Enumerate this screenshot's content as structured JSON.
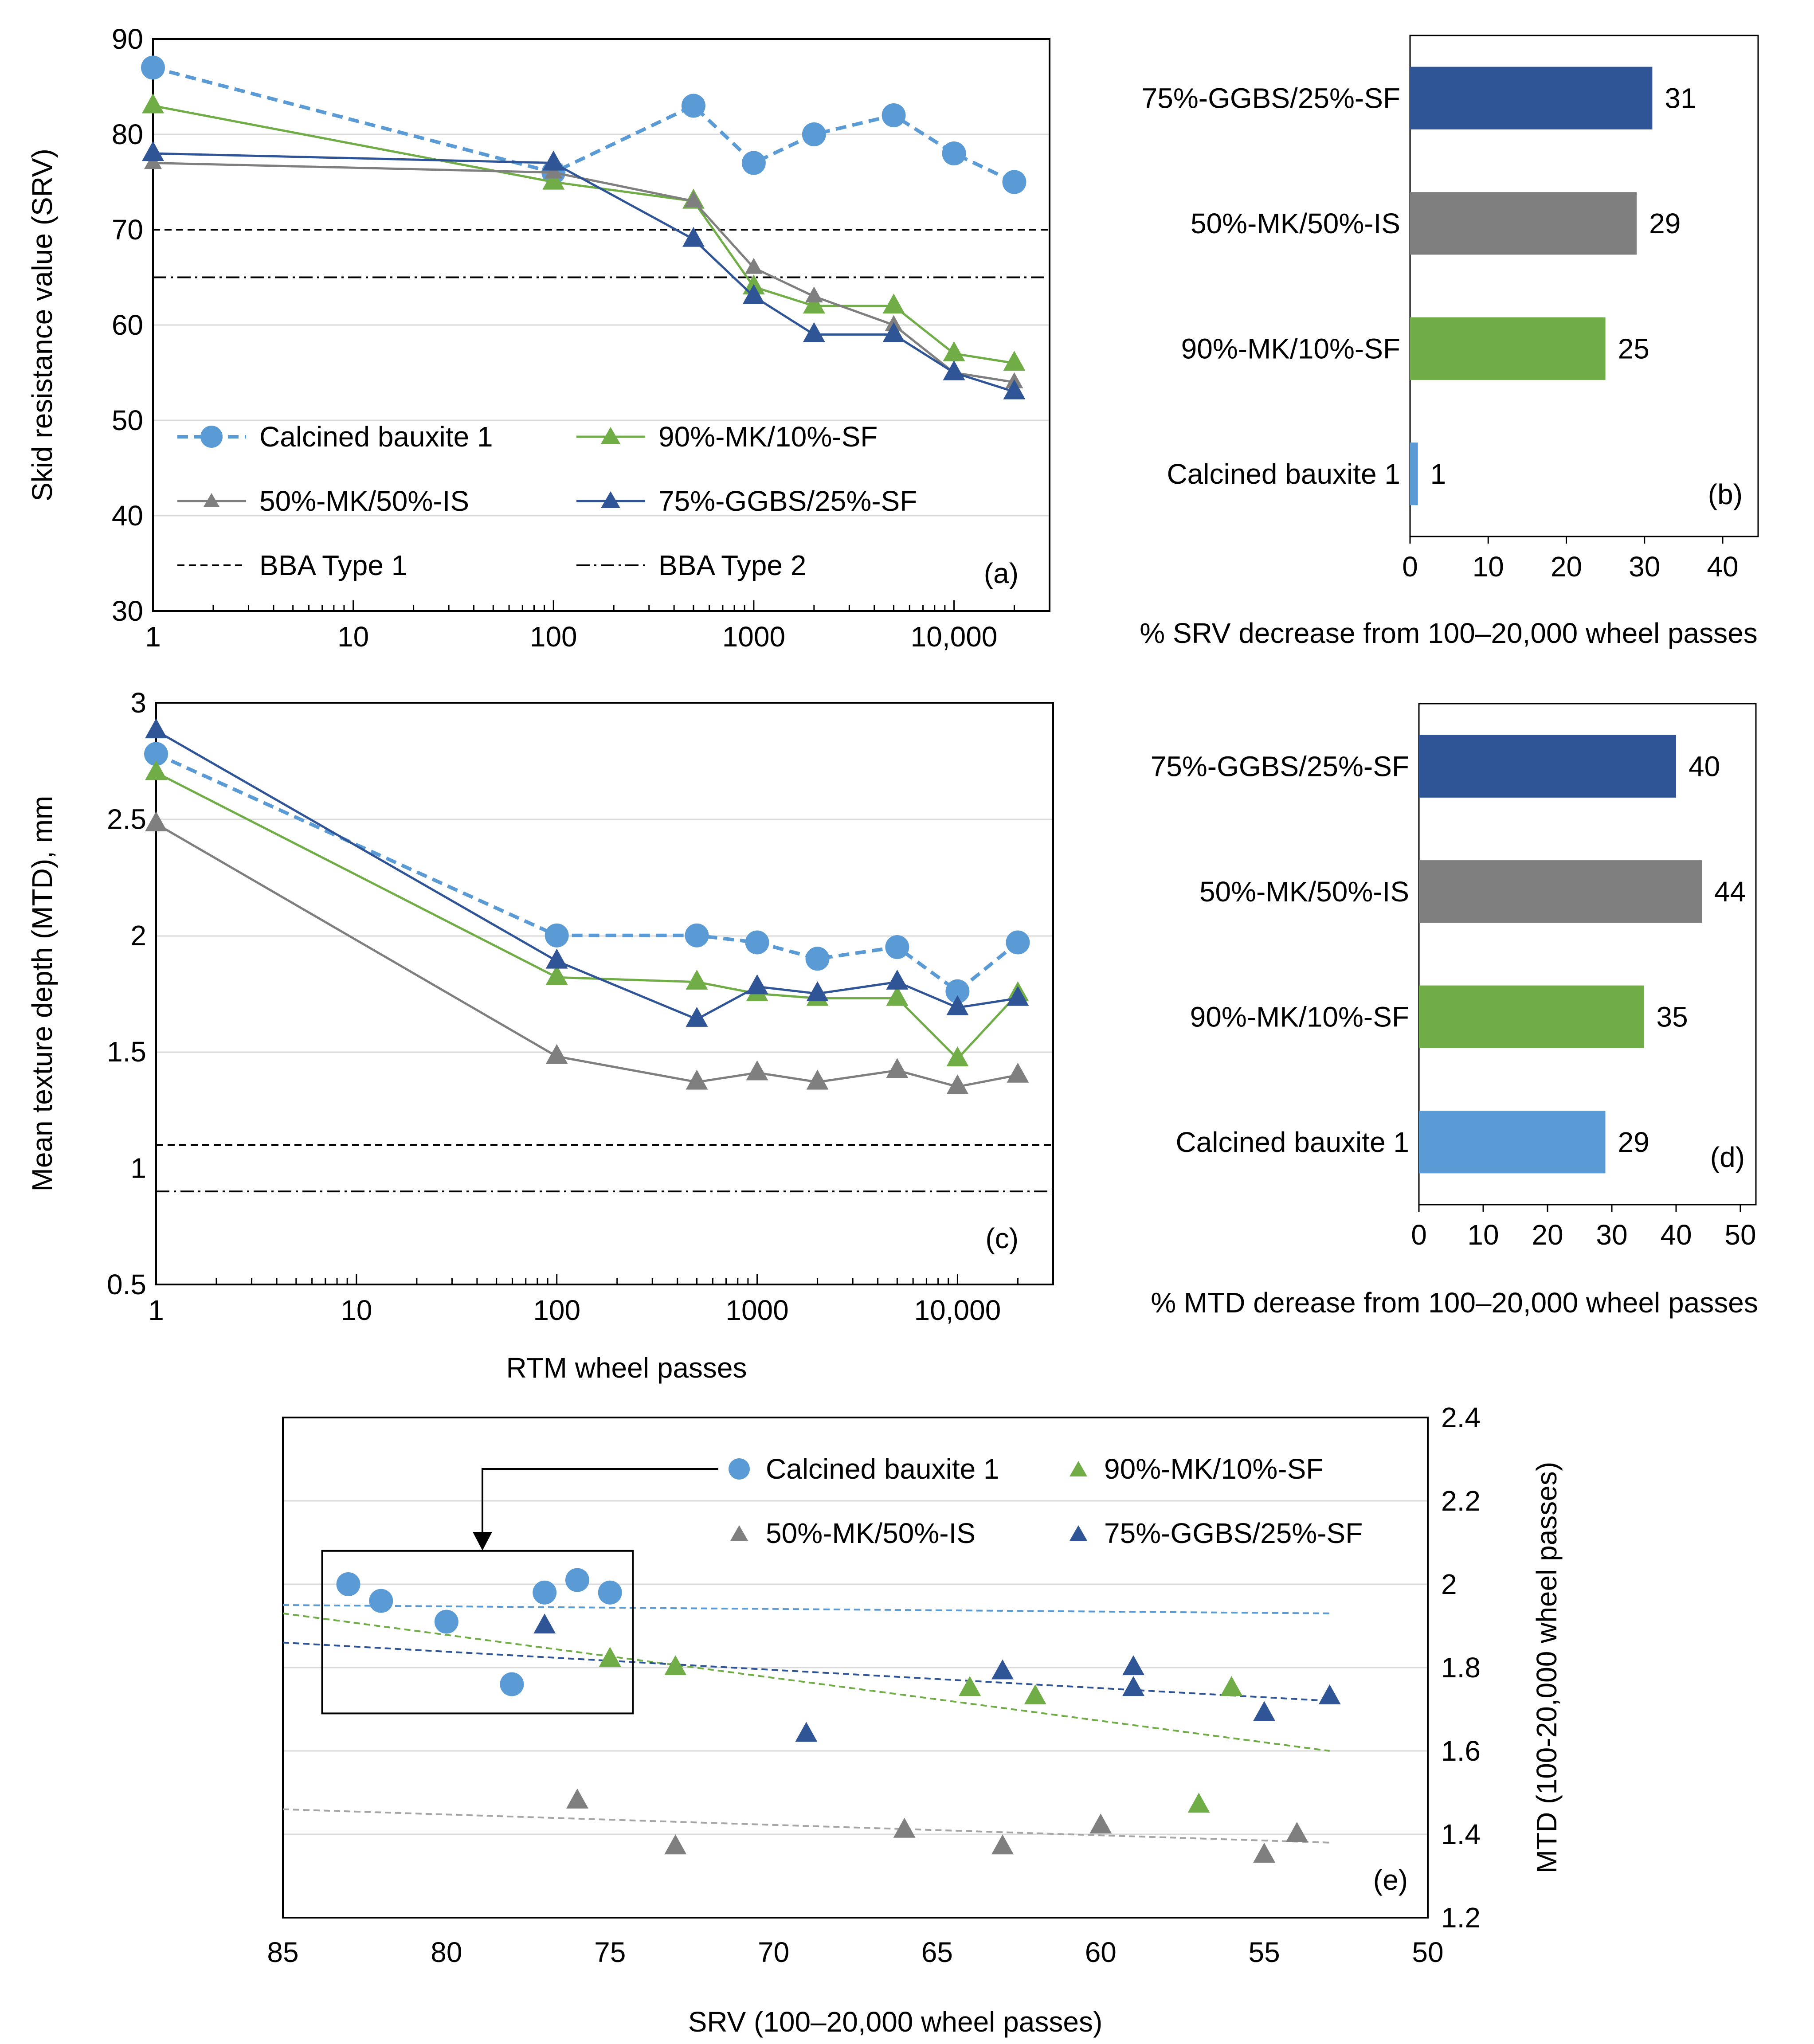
{
  "colors": {
    "calcined": "#5B9BD5",
    "mk_is": "#7F7F7F",
    "mk_sf": "#70AD47",
    "ggbs": "#2F5597",
    "axis": "#000000",
    "grid": "#D9D9D9",
    "trend_cal": "#5B9BD5",
    "trend_ggbs": "#2F5597",
    "trend_mksf": "#70AD47",
    "trend_mkis": "#A6A6A6"
  },
  "chart_data": [
    {
      "id": "a",
      "panel_label": "(a)",
      "type": "line",
      "ylabel": "Skid resistance value (SRV)",
      "xlabel": "",
      "xscale": "log",
      "xlim": [
        1,
        30000
      ],
      "ylim": [
        30,
        90
      ],
      "yticks": [
        "30",
        "40",
        "50",
        "60",
        "70",
        "80",
        "90"
      ],
      "xticks": [
        {
          "v": 1,
          "label": "1"
        },
        {
          "v": 10,
          "label": "10"
        },
        {
          "v": 100,
          "label": "100"
        },
        {
          "v": 1000,
          "label": "1000"
        },
        {
          "v": 10000,
          "label": "10,000"
        }
      ],
      "series": [
        {
          "name": "Calcined bauxite 1",
          "key": "calcined",
          "marker": "circle",
          "dash": "dashed",
          "x": [
            1,
            100,
            500,
            1000,
            2000,
            5000,
            10000,
            20000
          ],
          "values": [
            87,
            76,
            83,
            77,
            80,
            82,
            78,
            75
          ]
        },
        {
          "name": "90%-MK/10%-SF",
          "key": "mk_sf",
          "marker": "triangle",
          "dash": "solid",
          "x": [
            1,
            100,
            500,
            1000,
            2000,
            5000,
            10000,
            20000
          ],
          "values": [
            83,
            75,
            73,
            64,
            62,
            62,
            57,
            56
          ]
        },
        {
          "name": "50%-MK/50%-IS",
          "key": "mk_is",
          "marker": "triangle-small",
          "dash": "solid",
          "x": [
            1,
            100,
            500,
            1000,
            2000,
            5000,
            10000,
            20000
          ],
          "values": [
            77,
            76,
            73,
            66,
            63,
            60,
            55,
            54
          ]
        },
        {
          "name": "75%-GGBS/25%-SF",
          "key": "ggbs",
          "marker": "triangle",
          "dash": "solid",
          "x": [
            1,
            100,
            500,
            1000,
            2000,
            5000,
            10000,
            20000
          ],
          "values": [
            78,
            77,
            69,
            63,
            59,
            59,
            55,
            53
          ]
        }
      ],
      "reference_lines": [
        {
          "name": "BBA Type 1",
          "value": 70,
          "dash": "dashed"
        },
        {
          "name": "BBA Type 2",
          "value": 65,
          "dash": "dashdot"
        }
      ],
      "legend_position": "lower-left"
    },
    {
      "id": "b",
      "panel_label": "(b)",
      "type": "bar",
      "orientation": "horizontal",
      "categories": [
        "75%-GGBS/25%-SF",
        "50%-MK/50%-IS",
        "90%-MK/10%-SF",
        "Calcined bauxite 1"
      ],
      "keys": [
        "ggbs",
        "mk_is",
        "mk_sf",
        "calcined"
      ],
      "values": [
        31,
        29,
        25,
        1
      ],
      "value_labels": [
        "31",
        "29",
        "25",
        "1"
      ],
      "xlabel": "% SRV decrease from 100–20,000 wheel passes",
      "xlim": [
        0,
        40
      ],
      "xticks": [
        "0",
        "10",
        "20",
        "30",
        "40"
      ]
    },
    {
      "id": "c",
      "panel_label": "(c)",
      "type": "line",
      "ylabel": "Mean texture depth (MTD), mm",
      "xlabel": "RTM wheel passes",
      "xscale": "log",
      "xlim": [
        1,
        30000
      ],
      "ylim": [
        0.5,
        3
      ],
      "yticks": [
        "0.5",
        "1",
        "1.5",
        "2",
        "2.5",
        "3"
      ],
      "xticks": [
        {
          "v": 1,
          "label": "1"
        },
        {
          "v": 10,
          "label": "10"
        },
        {
          "v": 100,
          "label": "100"
        },
        {
          "v": 1000,
          "label": "1000"
        },
        {
          "v": 10000,
          "label": "10,000"
        }
      ],
      "series": [
        {
          "name": "Calcined bauxite 1",
          "key": "calcined",
          "marker": "circle",
          "dash": "dashed",
          "x": [
            1,
            100,
            500,
            1000,
            2000,
            5000,
            10000,
            20000
          ],
          "values": [
            2.78,
            2.0,
            2.0,
            1.97,
            1.9,
            1.95,
            1.76,
            1.97
          ]
        },
        {
          "name": "90%-MK/10%-SF",
          "key": "mk_sf",
          "marker": "triangle",
          "dash": "solid",
          "x": [
            1,
            100,
            500,
            1000,
            2000,
            5000,
            10000,
            20000
          ],
          "values": [
            2.7,
            1.82,
            1.8,
            1.75,
            1.73,
            1.73,
            1.47,
            1.75
          ]
        },
        {
          "name": "50%-MK/50%-IS",
          "key": "mk_is",
          "marker": "triangle",
          "dash": "solid",
          "x": [
            1,
            100,
            500,
            1000,
            2000,
            5000,
            10000,
            20000
          ],
          "values": [
            2.48,
            1.48,
            1.37,
            1.41,
            1.37,
            1.42,
            1.35,
            1.4
          ]
        },
        {
          "name": "75%-GGBS/25%-SF",
          "key": "ggbs",
          "marker": "triangle",
          "dash": "solid",
          "x": [
            1,
            100,
            500,
            1000,
            2000,
            5000,
            10000,
            20000
          ],
          "values": [
            2.88,
            1.89,
            1.64,
            1.78,
            1.75,
            1.8,
            1.69,
            1.73
          ]
        }
      ],
      "reference_lines": [
        {
          "name": "BBA Type 1",
          "value": 1.1,
          "dash": "dashed"
        },
        {
          "name": "BBA Type 2",
          "value": 0.9,
          "dash": "dashdot"
        }
      ]
    },
    {
      "id": "d",
      "panel_label": "(d)",
      "type": "bar",
      "orientation": "horizontal",
      "categories": [
        "75%-GGBS/25%-SF",
        "50%-MK/50%-IS",
        "90%-MK/10%-SF",
        "Calcined bauxite 1"
      ],
      "keys": [
        "ggbs",
        "mk_is",
        "mk_sf",
        "calcined"
      ],
      "values": [
        40,
        44,
        35,
        29
      ],
      "value_labels": [
        "40",
        "44",
        "35",
        "29"
      ],
      "xlabel": "% MTD derease from 100–20,000 wheel passes",
      "xlim": [
        0,
        50
      ],
      "xticks": [
        "0",
        "10",
        "20",
        "30",
        "40",
        "50"
      ]
    },
    {
      "id": "e",
      "panel_label": "(e)",
      "type": "scatter",
      "xlabel": "SRV (100–20,000 wheel passes)",
      "ylabel": "MTD (100-20,000 wheel passes)",
      "xlim": [
        85,
        50
      ],
      "ylim": [
        1.2,
        2.4
      ],
      "xticks": [
        "85",
        "80",
        "75",
        "70",
        "65",
        "60",
        "55",
        "50"
      ],
      "yticks": [
        "1.2",
        "1.4",
        "1.6",
        "1.8",
        "2",
        "2.2",
        "2.4"
      ],
      "series": [
        {
          "name": "Calcined bauxite 1",
          "key": "calcined",
          "marker": "circle",
          "x": [
            83,
            82,
            80,
            78,
            77,
            76,
            75
          ],
          "values": [
            2.0,
            1.96,
            1.91,
            1.76,
            1.98,
            2.01,
            1.98
          ],
          "trend": {
            "x": [
              85,
              53
            ],
            "values": [
              1.95,
              1.93
            ]
          }
        },
        {
          "name": "90%-MK/10%-SF",
          "key": "mk_sf",
          "marker": "triangle",
          "x": [
            75,
            73,
            64,
            62,
            57,
            56
          ],
          "values": [
            1.82,
            1.8,
            1.75,
            1.73,
            1.47,
            1.75
          ],
          "trend": {
            "x": [
              85,
              53
            ],
            "values": [
              1.93,
              1.6
            ]
          }
        },
        {
          "name": "50%-MK/50%-IS",
          "key": "mk_is",
          "marker": "triangle",
          "x": [
            76,
            73,
            66,
            63,
            60,
            55,
            54
          ],
          "values": [
            1.48,
            1.37,
            1.41,
            1.37,
            1.42,
            1.35,
            1.4
          ],
          "trend": {
            "x": [
              85,
              53
            ],
            "values": [
              1.46,
              1.38
            ]
          }
        },
        {
          "name": "75%-GGBS/25%-SF",
          "key": "ggbs",
          "marker": "triangle",
          "x": [
            77,
            69,
            63,
            59,
            59,
            55,
            53
          ],
          "values": [
            1.9,
            1.64,
            1.79,
            1.8,
            1.75,
            1.69,
            1.73
          ],
          "trend": {
            "x": [
              85,
              53
            ],
            "values": [
              1.86,
              1.72
            ]
          }
        }
      ],
      "inset_box": {
        "x": [
          83.8,
          74.3
        ],
        "values": [
          2.08,
          1.69
        ]
      }
    }
  ]
}
